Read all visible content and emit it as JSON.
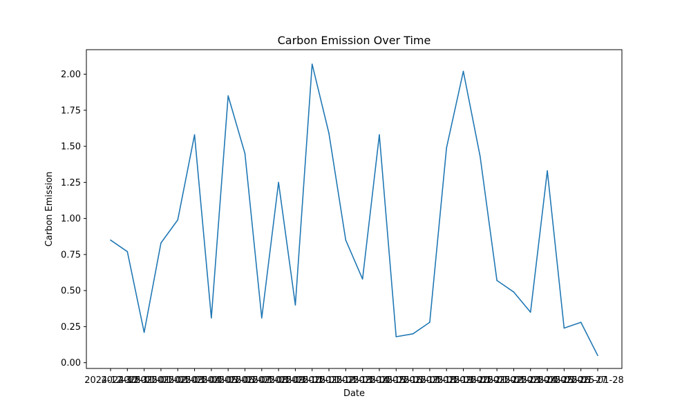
{
  "chart_data": {
    "type": "line",
    "title": "Carbon Emission Over Time",
    "xlabel": "Date",
    "ylabel": "Carbon Emission",
    "ylim": [
      -0.04,
      2.17
    ],
    "yticks": [
      "0.00",
      "0.25",
      "0.50",
      "0.75",
      "1.00",
      "1.25",
      "1.50",
      "1.75",
      "2.00"
    ],
    "grid": false,
    "line_color": "#1f77b4",
    "x_tick_labels": [
      "2024-12-30",
      "2024-12-31",
      "2025-01-01",
      "2025-01-02",
      "2025-01-03",
      "2025-01-04",
      "2025-01-05",
      "2025-01-06",
      "2025-01-07",
      "2025-01-08",
      "2025-01-09",
      "2025-01-10",
      "2025-01-11",
      "2025-01-12",
      "2025-01-13",
      "2025-01-14",
      "2025-01-15",
      "2025-01-16",
      "2025-01-17",
      "2025-01-18",
      "2025-01-19",
      "2025-01-20",
      "2025-01-21",
      "2025-01-22",
      "2025-01-23",
      "2025-01-24",
      "2025-01-25",
      "2025-01-26",
      "2025-01-27",
      "2025-01-28"
    ],
    "series": [
      {
        "values": [
          0.85,
          0.77,
          0.21,
          0.83,
          0.99,
          1.58,
          0.31,
          1.85,
          1.45,
          0.31,
          1.25,
          0.4,
          2.07,
          1.59,
          0.85,
          0.58,
          1.58,
          0.18,
          0.2,
          0.28,
          1.49,
          2.02,
          1.43,
          0.57,
          0.49,
          0.35,
          1.33,
          0.24,
          0.28,
          0.05
        ]
      }
    ]
  }
}
